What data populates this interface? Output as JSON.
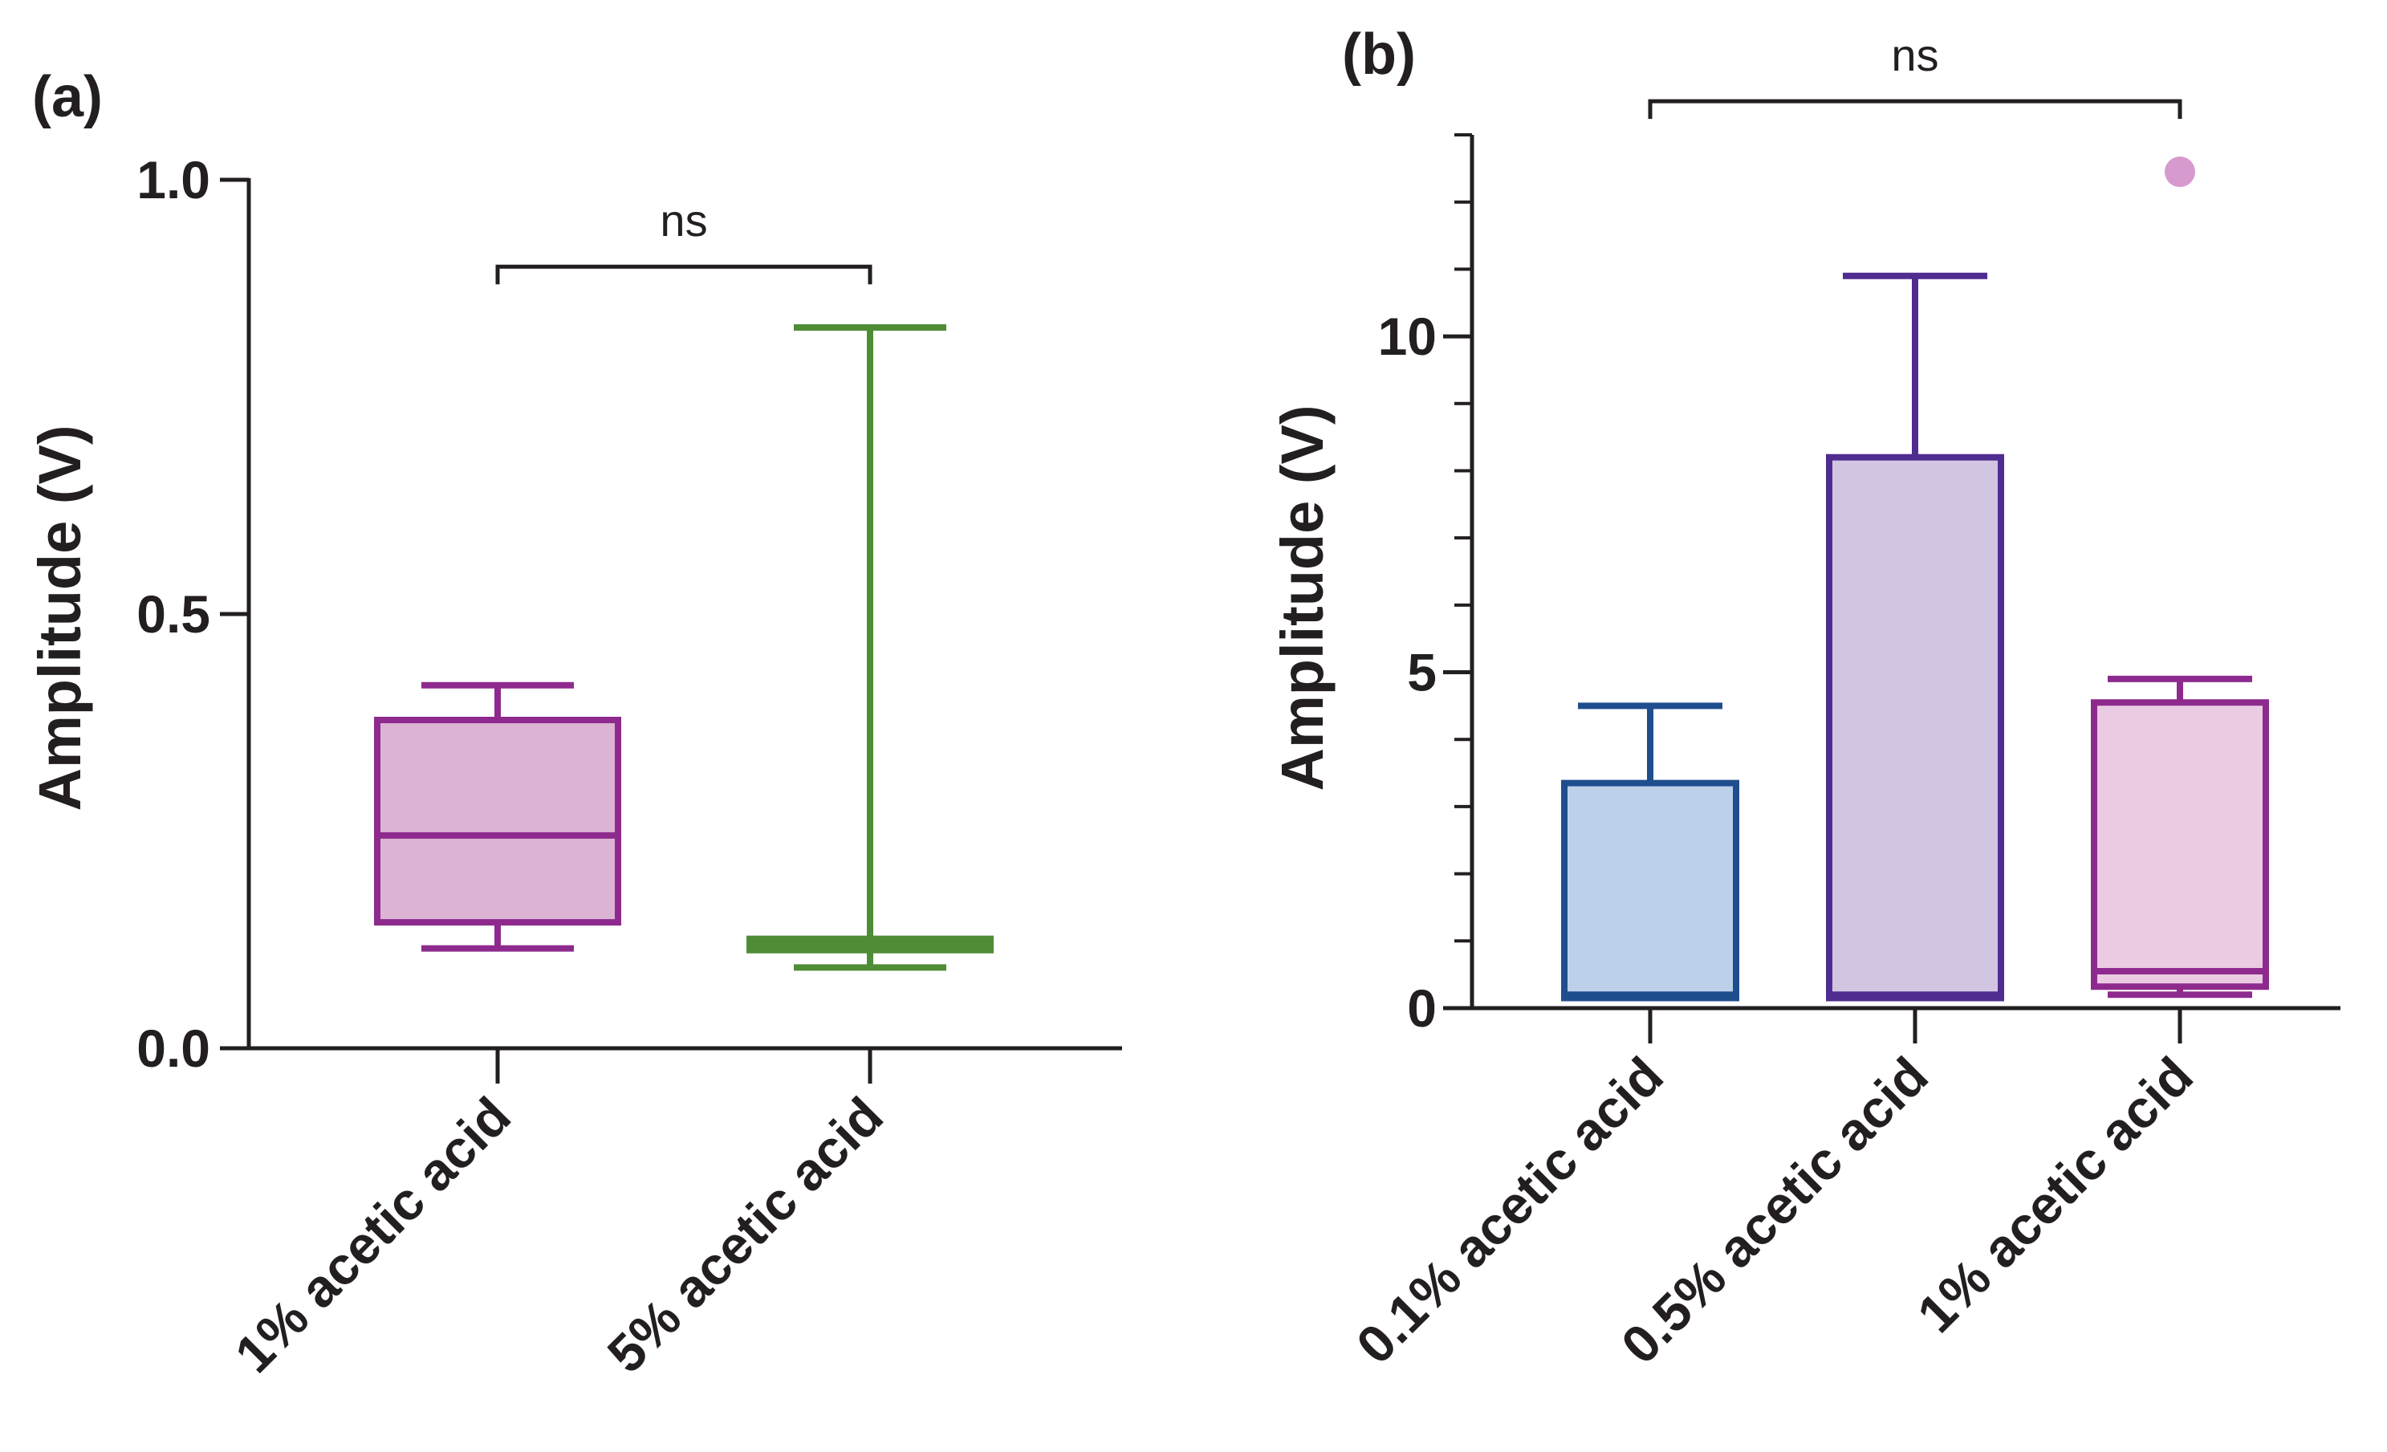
{
  "chart_data": [
    {
      "panel": "(a)",
      "type": "box",
      "ylabel": "Amplitude (V)",
      "ylim": [
        0,
        1.0
      ],
      "yticks": [
        "0.0",
        "0.5",
        "1.0"
      ],
      "categories": [
        "1% acetic acid",
        "5% acetic acid"
      ],
      "boxes": [
        {
          "name": "1% acetic acid",
          "min": 0.115,
          "q1": 0.145,
          "median": 0.245,
          "q3": 0.378,
          "max": 0.418,
          "fill": "#dcb3d3",
          "stroke": "#8e2a8e"
        },
        {
          "name": "5% acetic acid",
          "min": 0.093,
          "q1": 0.113,
          "median": 0.12,
          "q3": 0.126,
          "max": 0.83,
          "fill": "#5b8f3c",
          "stroke": "#4e8c35"
        }
      ],
      "significance": {
        "label": "ns",
        "from": "1% acetic acid",
        "to": "5% acetic acid",
        "y": 0.9
      }
    },
    {
      "panel": "(b)",
      "type": "box",
      "ylabel": "Amplitude (V)",
      "ylim": [
        0,
        13
      ],
      "yticks": [
        "0",
        "5",
        "10"
      ],
      "minor_tick_step": 1,
      "categories": [
        "0.1% acetic acid",
        "0.5% acetic acid",
        "1% acetic acid"
      ],
      "boxes": [
        {
          "name": "0.1% acetic acid",
          "min": 0.15,
          "q1": 0.15,
          "median": 0.2,
          "q3": 3.35,
          "max": 4.5,
          "fill": "#bdd0ea",
          "stroke": "#1f4e8f"
        },
        {
          "name": "0.5% acetic acid",
          "min": 0.15,
          "q1": 0.15,
          "median": 0.2,
          "q3": 8.2,
          "max": 10.9,
          "fill": "#d2c5e2",
          "stroke": "#4f2c8f"
        },
        {
          "name": "1% acetic acid",
          "min": 0.2,
          "q1": 0.32,
          "median": 0.55,
          "q3": 4.55,
          "max": 4.9,
          "fill": "#ebcbe2",
          "stroke": "#8e2a8e",
          "outliers": [
            12.45
          ],
          "outlier_color": "#d79acf"
        }
      ],
      "significance": {
        "label": "ns",
        "from": "0.1% acetic acid",
        "to": "1% acetic acid",
        "y": 13.5
      }
    }
  ]
}
